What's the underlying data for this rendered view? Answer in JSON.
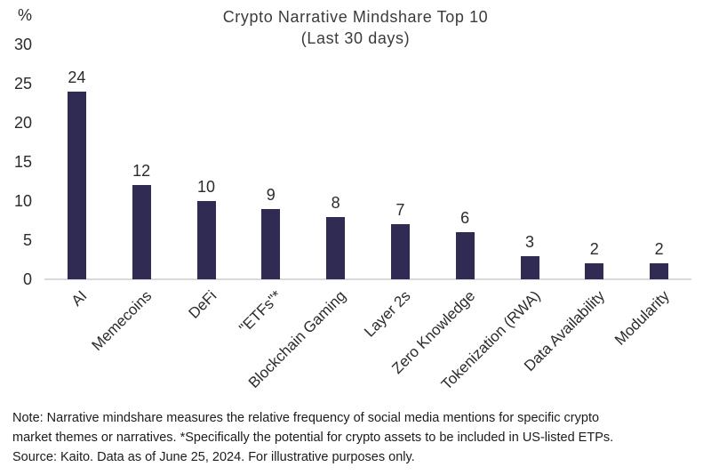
{
  "title": {
    "line1": "Crypto Narrative Mindshare Top 10",
    "line2": "(Last 30 days)"
  },
  "chart_data": {
    "type": "bar",
    "title": "Crypto Narrative Mindshare Top 10 (Last 30 days)",
    "categories": [
      "AI",
      "Memecoins",
      "DeFi",
      "\"ETFs\"*",
      "Blockchain Gaming",
      "Layer 2s",
      "Zero Knowledge",
      "Tokenization (RWA)",
      "Data Availability",
      "Modularity"
    ],
    "values": [
      24,
      12,
      10,
      9,
      8,
      7,
      6,
      3,
      2,
      2
    ],
    "xlabel": "",
    "ylabel": "%",
    "ylim": [
      0,
      30
    ],
    "yticks": [
      0,
      5,
      10,
      15,
      20,
      25,
      30
    ],
    "grid": false,
    "legend": "none",
    "bar_color": "#2f2b52",
    "tick_label_rotation_deg": 45
  },
  "footnote": {
    "lines": [
      "Note: Narrative mindshare measures the relative frequency of social media mentions for specific crypto",
      "market themes or narratives. *Specifically the potential for crypto assets to be included in US-listed ETPs.",
      "Source: Kaito. Data as of June 25, 2024. For illustrative purposes only."
    ]
  },
  "colors": {
    "bar": "#2f2b52",
    "axis_line": "#d9d9d9",
    "text": "#2b2b2b",
    "footnote_text": "#1c1c1c",
    "background": "#ffffff"
  }
}
